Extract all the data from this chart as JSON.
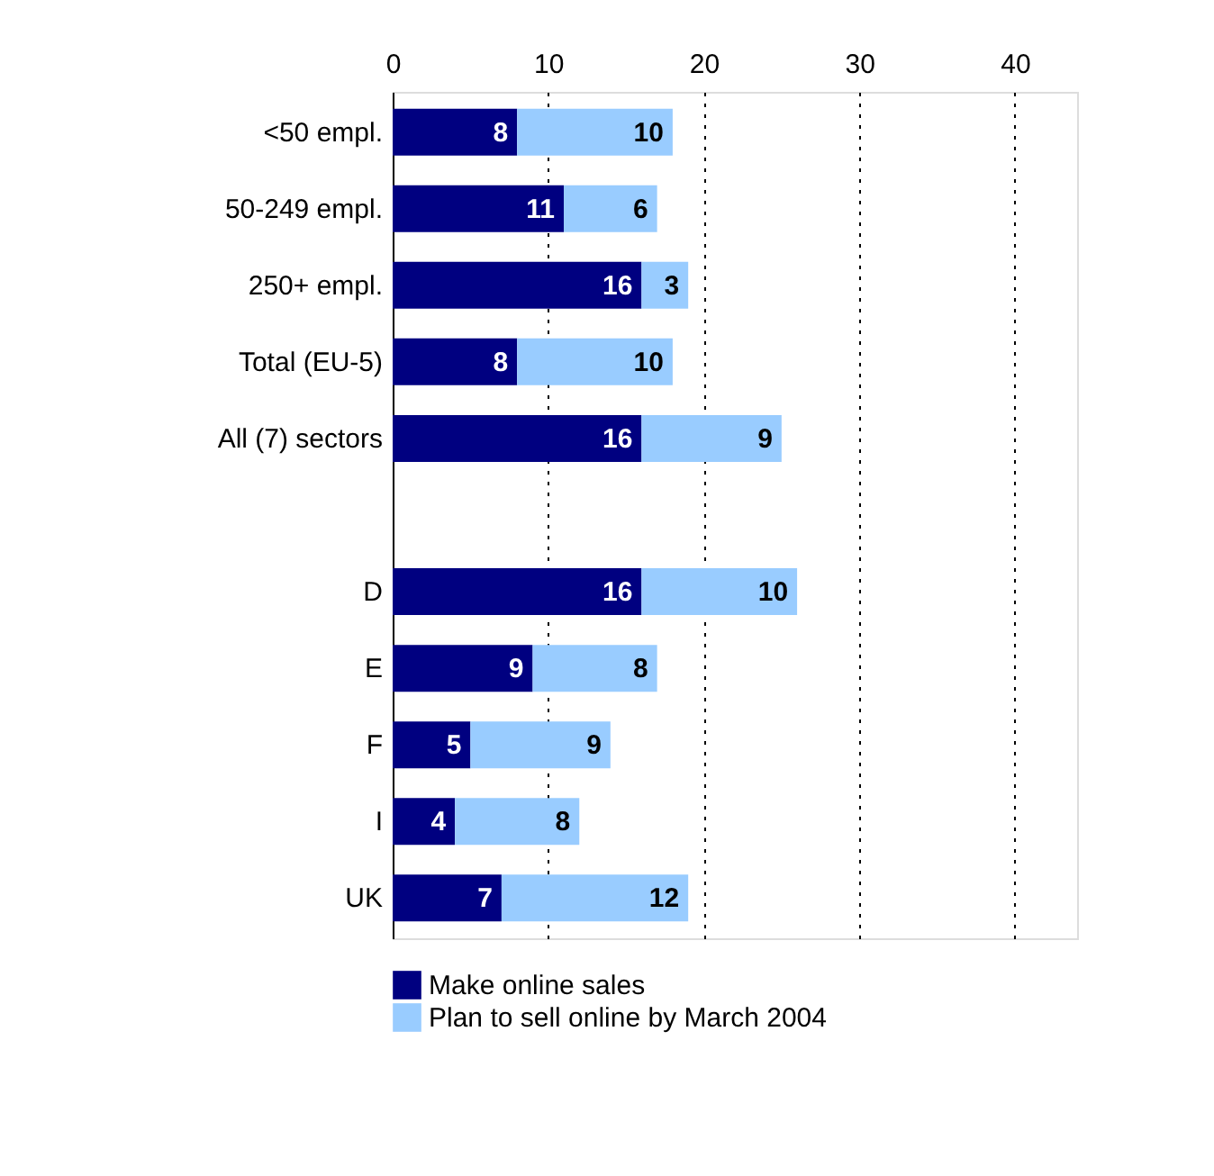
{
  "chart_data": {
    "type": "bar",
    "orientation": "horizontal",
    "stacked": true,
    "data_labels": true,
    "categories": [
      "<50 empl.",
      "50-249 empl.",
      "250+ empl.",
      "Total (EU-5)",
      "All (7) sectors",
      null,
      "D",
      "E",
      "F",
      "I",
      "UK"
    ],
    "series": [
      {
        "name": "Make online sales",
        "color": "#000080",
        "values": [
          8,
          11,
          16,
          8,
          16,
          null,
          16,
          9,
          5,
          4,
          7
        ]
      },
      {
        "name": "Plan to sell online by March 2004",
        "color": "#99ccff",
        "values": [
          10,
          6,
          3,
          10,
          9,
          null,
          10,
          8,
          9,
          8,
          12
        ]
      }
    ],
    "xlim": [
      0,
      44
    ],
    "xticks": [
      0,
      10,
      20,
      30,
      40
    ],
    "grid": "x",
    "legend": "bottom"
  }
}
